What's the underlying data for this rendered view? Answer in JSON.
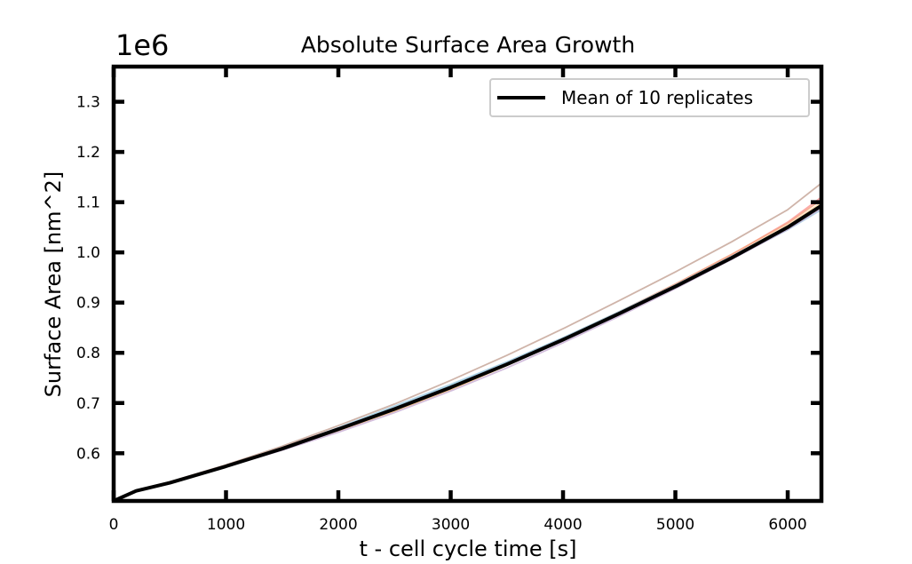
{
  "chart_data": {
    "type": "line",
    "title": "Absolute Surface Area Growth",
    "offset_label": "1e6",
    "xlabel": "t - cell cycle time [s]",
    "ylabel": "Surface Area [nm^2]",
    "xlim": [
      0,
      6300
    ],
    "ylim": [
      0.505,
      1.37
    ],
    "x_ticks": [
      0,
      1000,
      2000,
      3000,
      4000,
      5000,
      6000
    ],
    "x_tick_labels": [
      "0",
      "1000",
      "2000",
      "3000",
      "4000",
      "5000",
      "6000"
    ],
    "y_ticks": [
      0.6,
      0.7,
      0.8,
      0.9,
      1.0,
      1.1,
      1.2,
      1.3
    ],
    "y_tick_labels": [
      "0.6",
      "0.7",
      "0.8",
      "0.9",
      "1.0",
      "1.1",
      "1.2",
      "1.3"
    ],
    "grid": false,
    "legend": {
      "position": "top-right",
      "entries": [
        "Mean of 10 replicates"
      ]
    },
    "x": [
      0,
      200,
      500,
      1000,
      1500,
      2000,
      2500,
      3000,
      3500,
      4000,
      4500,
      5000,
      5500,
      6000,
      6300
    ],
    "mean": {
      "name": "Mean of 10 replicates",
      "color": "#000000",
      "values": [
        0.505,
        0.525,
        0.541,
        0.574,
        0.609,
        0.648,
        0.688,
        0.731,
        0.777,
        0.826,
        0.878,
        0.932,
        0.989,
        1.05,
        1.093
      ]
    },
    "replicates": [
      {
        "color": "#a6cee3",
        "values": [
          0.505,
          0.525,
          0.541,
          0.574,
          0.61,
          0.651,
          0.694,
          0.737,
          0.782,
          0.83,
          0.88,
          0.932,
          0.987,
          1.045,
          1.085
        ]
      },
      {
        "color": "#fdbf6f",
        "values": [
          0.505,
          0.525,
          0.541,
          0.574,
          0.608,
          0.645,
          0.684,
          0.727,
          0.775,
          0.825,
          0.878,
          0.932,
          0.99,
          1.052,
          1.095
        ]
      },
      {
        "color": "#fb9a99",
        "values": [
          0.505,
          0.525,
          0.542,
          0.576,
          0.612,
          0.65,
          0.689,
          0.733,
          0.78,
          0.829,
          0.881,
          0.936,
          0.995,
          1.06,
          1.11
        ]
      },
      {
        "color": "#cab2d6",
        "values": [
          0.505,
          0.524,
          0.54,
          0.573,
          0.606,
          0.642,
          0.681,
          0.724,
          0.77,
          0.82,
          0.873,
          0.928,
          0.986,
          1.046,
          1.088
        ]
      },
      {
        "color": "#c7a79a",
        "values": [
          0.505,
          0.526,
          0.543,
          0.577,
          0.614,
          0.655,
          0.698,
          0.745,
          0.795,
          0.848,
          0.904,
          0.961,
          1.021,
          1.085,
          1.138
        ]
      },
      {
        "color": "#b2df8a",
        "values": [
          0.505,
          0.525,
          0.541,
          0.574,
          0.609,
          0.647,
          0.687,
          0.73,
          0.777,
          0.826,
          0.879,
          0.933,
          0.991,
          1.052,
          1.096
        ]
      },
      {
        "color": "#f4a582",
        "values": [
          0.505,
          0.525,
          0.541,
          0.575,
          0.61,
          0.648,
          0.688,
          0.732,
          0.779,
          0.829,
          0.882,
          0.937,
          0.996,
          1.058,
          1.105
        ]
      },
      {
        "color": "#d8b4e2",
        "values": [
          0.505,
          0.525,
          0.541,
          0.574,
          0.608,
          0.646,
          0.686,
          0.729,
          0.776,
          0.825,
          0.877,
          0.931,
          0.988,
          1.049,
          1.092
        ]
      },
      {
        "color": "#ffd8a8",
        "values": [
          0.505,
          0.525,
          0.541,
          0.574,
          0.609,
          0.647,
          0.687,
          0.731,
          0.778,
          0.827,
          0.88,
          0.934,
          0.992,
          1.054,
          1.099
        ]
      },
      {
        "color": "#9ecae1",
        "values": [
          0.505,
          0.525,
          0.542,
          0.575,
          0.611,
          0.65,
          0.691,
          0.735,
          0.781,
          0.83,
          0.882,
          0.935,
          0.992,
          1.052,
          1.094
        ]
      }
    ]
  }
}
